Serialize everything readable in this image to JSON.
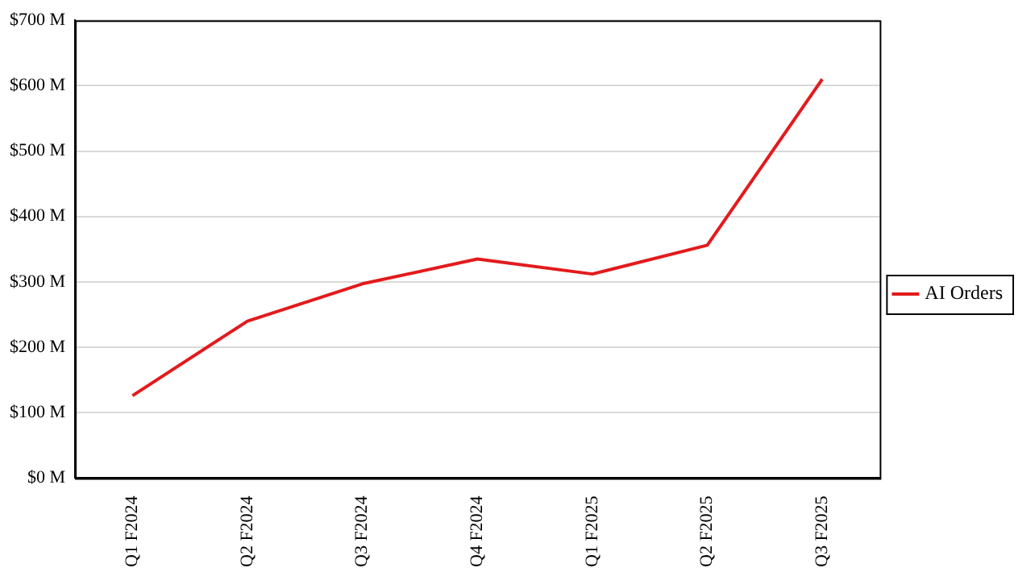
{
  "chart_data": {
    "type": "line",
    "categories": [
      "Q1 F2024",
      "Q2 F2024",
      "Q3 F2024",
      "Q4 F2024",
      "Q1 F2025",
      "Q2 F2025",
      "Q3 F2025"
    ],
    "series": [
      {
        "name": "AI Orders",
        "color": "#e31a1c",
        "values": [
          126,
          240,
          297,
          335,
          312,
          356,
          610
        ]
      }
    ],
    "ylim": [
      0,
      700
    ],
    "yticks": [
      {
        "value": 0,
        "label": "$0 M"
      },
      {
        "value": 100,
        "label": "$100 M"
      },
      {
        "value": 200,
        "label": "$200 M"
      },
      {
        "value": 300,
        "label": "$300 M"
      },
      {
        "value": 400,
        "label": "$400 M"
      },
      {
        "value": 500,
        "label": "$500 M"
      },
      {
        "value": 600,
        "label": "$600 M"
      },
      {
        "value": 700,
        "label": "$700 M"
      }
    ],
    "grid": "y",
    "legend": "right",
    "marker": "none",
    "line_style": "solid"
  }
}
